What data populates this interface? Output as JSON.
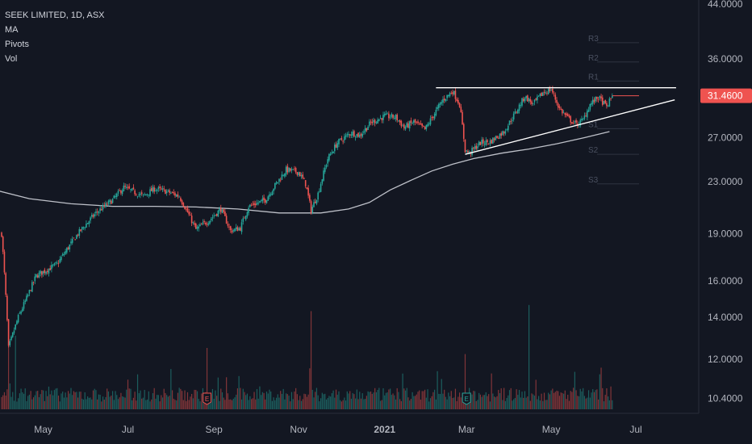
{
  "header": {
    "symbol_line": "SEEK LIMITED, 1D, ASX",
    "indicators": [
      "MA",
      "Pivots",
      "Vol"
    ]
  },
  "colors": {
    "background": "#131722",
    "up": "#26a69a",
    "down": "#ef5350",
    "ma": "#d1d4dc",
    "trendline": "#ffffff",
    "price_tag": "#ef5350",
    "axis_text": "#b2b5be",
    "pivot_text": "#4a5060"
  },
  "chart_data": {
    "type": "candlestick",
    "symbol": "SEEK LIMITED",
    "interval": "1D",
    "exchange": "ASX",
    "last_price_label": "31.4600",
    "last_price": 31.46,
    "y_scale": "log",
    "ylim": [
      10.0,
      44.0
    ],
    "y_ticks": [
      "44.0000",
      "36.0000",
      "31.4600",
      "27.0000",
      "23.0000",
      "19.0000",
      "16.0000",
      "14.0000",
      "12.0000",
      "10.4000"
    ],
    "y_tick_values": [
      44.0,
      36.0,
      27.0,
      23.0,
      19.0,
      16.0,
      14.0,
      12.0,
      10.4
    ],
    "x_ticks": [
      {
        "label": "May",
        "day": 30,
        "bold": false
      },
      {
        "label": "Jul",
        "day": 91,
        "bold": false
      },
      {
        "label": "Sep",
        "day": 153,
        "bold": false
      },
      {
        "label": "Nov",
        "day": 214,
        "bold": false
      },
      {
        "label": "2021",
        "day": 276,
        "bold": true
      },
      {
        "label": "Mar",
        "day": 335,
        "bold": false
      },
      {
        "label": "May",
        "day": 396,
        "bold": false
      },
      {
        "label": "Jul",
        "day": 457,
        "bold": false
      }
    ],
    "price_path": [
      [
        0,
        19.0
      ],
      [
        5,
        12.5
      ],
      [
        12,
        14.0
      ],
      [
        18,
        15.0
      ],
      [
        25,
        16.3
      ],
      [
        40,
        17.0
      ],
      [
        55,
        19.0
      ],
      [
        68,
        20.5
      ],
      [
        80,
        21.5
      ],
      [
        88,
        22.5
      ],
      [
        102,
        21.8
      ],
      [
        110,
        22.4
      ],
      [
        118,
        22.2
      ],
      [
        128,
        21.8
      ],
      [
        140,
        19.3
      ],
      [
        150,
        20.0
      ],
      [
        158,
        20.8
      ],
      [
        165,
        19.2
      ],
      [
        172,
        19.4
      ],
      [
        178,
        21.0
      ],
      [
        190,
        21.5
      ],
      [
        196,
        22.5
      ],
      [
        205,
        24.0
      ],
      [
        214,
        23.8
      ],
      [
        219,
        22.8
      ],
      [
        223,
        20.7
      ],
      [
        228,
        22.0
      ],
      [
        235,
        25.0
      ],
      [
        242,
        26.5
      ],
      [
        252,
        27.5
      ],
      [
        258,
        27.2
      ],
      [
        266,
        28.5
      ],
      [
        276,
        29.2
      ],
      [
        284,
        29.1
      ],
      [
        290,
        28.0
      ],
      [
        297,
        28.6
      ],
      [
        305,
        27.8
      ],
      [
        312,
        29.5
      ],
      [
        318,
        31.0
      ],
      [
        325,
        32.0
      ],
      [
        330,
        30.5
      ],
      [
        334,
        25.8
      ],
      [
        337,
        25.5
      ],
      [
        345,
        26.5
      ],
      [
        352,
        26.6
      ],
      [
        362,
        27.6
      ],
      [
        370,
        29.5
      ],
      [
        377,
        31.4
      ],
      [
        383,
        30.5
      ],
      [
        390,
        31.8
      ],
      [
        396,
        32.2
      ],
      [
        402,
        30.0
      ],
      [
        408,
        29.0
      ],
      [
        414,
        28.3
      ],
      [
        419,
        28.8
      ],
      [
        424,
        30.5
      ],
      [
        430,
        31.3
      ],
      [
        436,
        30.2
      ],
      [
        440,
        31.46
      ]
    ],
    "ma_path": [
      [
        -5,
        22.3
      ],
      [
        20,
        21.6
      ],
      [
        50,
        21.2
      ],
      [
        80,
        21.0
      ],
      [
        110,
        21.0
      ],
      [
        140,
        20.95
      ],
      [
        170,
        20.8
      ],
      [
        200,
        20.5
      ],
      [
        230,
        20.5
      ],
      [
        250,
        20.8
      ],
      [
        265,
        21.3
      ],
      [
        280,
        22.3
      ],
      [
        295,
        23.1
      ],
      [
        310,
        23.9
      ],
      [
        325,
        24.5
      ],
      [
        340,
        25.0
      ],
      [
        360,
        25.5
      ],
      [
        380,
        25.9
      ],
      [
        400,
        26.4
      ],
      [
        420,
        27.0
      ],
      [
        438,
        27.6
      ]
    ],
    "trendlines": [
      {
        "from": [
          313,
          32.4
        ],
        "to": [
          486,
          32.4
        ]
      },
      {
        "from": [
          334,
          25.4
        ],
        "to": [
          485,
          31.0
        ]
      }
    ],
    "pivot_levels": [
      {
        "label": "R3",
        "value": 38.2
      },
      {
        "label": "R2",
        "value": 35.6
      },
      {
        "label": "R1",
        "value": 33.2
      },
      {
        "label": "S1",
        "value": 27.9
      },
      {
        "label": "S2",
        "value": 25.4
      },
      {
        "label": "S3",
        "value": 22.8
      }
    ],
    "earnings_markers": [
      148,
      335
    ],
    "n_days": 441
  }
}
